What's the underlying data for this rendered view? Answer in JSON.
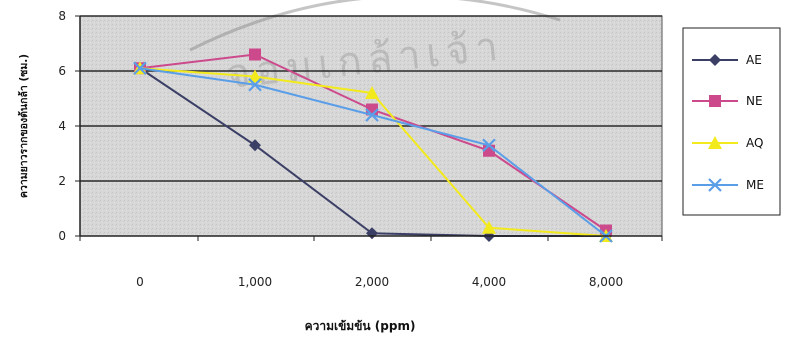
{
  "chart_data": {
    "type": "line",
    "categories": [
      "0",
      "1,000",
      "2,000",
      "4,000",
      "8,000"
    ],
    "series": [
      {
        "name": "AE",
        "values": [
          6.1,
          3.3,
          0.1,
          0.0,
          0.0
        ],
        "color": "#3b3f66",
        "marker": "diamond"
      },
      {
        "name": "NE",
        "values": [
          6.1,
          6.6,
          4.6,
          3.1,
          0.2
        ],
        "color": "#cc4a8c",
        "marker": "square"
      },
      {
        "name": "AQ",
        "values": [
          6.1,
          5.8,
          5.2,
          0.3,
          0.0
        ],
        "color": "#f2ea1c",
        "marker": "triangle"
      },
      {
        "name": "ME",
        "values": [
          6.1,
          5.5,
          4.4,
          3.3,
          0.0
        ],
        "color": "#5a9ee8",
        "marker": "x"
      }
    ],
    "xlabel": "ความเข้มข้น (ppm)",
    "ylabel": "ความยาวรากของต้นกล้า (ซม.)",
    "ylim": [
      0,
      8
    ],
    "yticks": [
      "0",
      "2",
      "4",
      "6",
      "8"
    ],
    "grid": true,
    "legend": "right"
  },
  "watermark": "จอมเกล้าเจ้า"
}
